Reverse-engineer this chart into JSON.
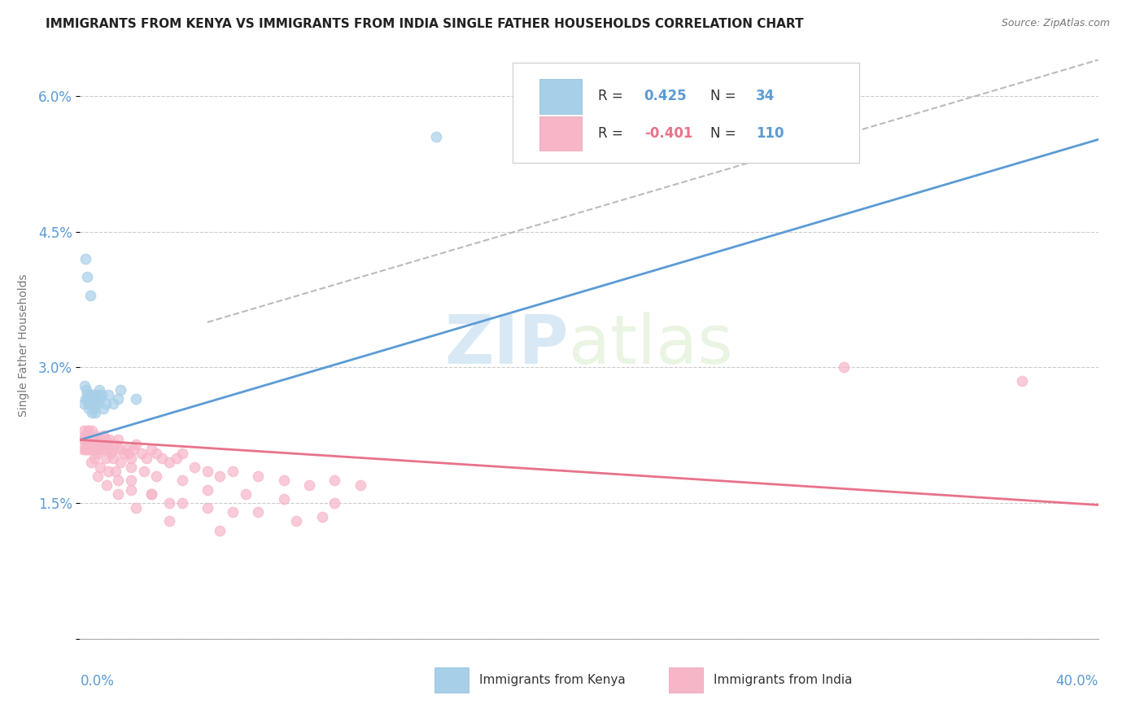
{
  "title": "IMMIGRANTS FROM KENYA VS IMMIGRANTS FROM INDIA SINGLE FATHER HOUSEHOLDS CORRELATION CHART",
  "source": "Source: ZipAtlas.com",
  "ylabel": "Single Father Households",
  "xlim": [
    0.0,
    40.0
  ],
  "ylim": [
    0.0,
    6.5
  ],
  "yticks": [
    0.0,
    1.5,
    3.0,
    4.5,
    6.0
  ],
  "ytick_labels": [
    "",
    "1.5%",
    "3.0%",
    "4.5%",
    "6.0%"
  ],
  "legend_r_kenya": "R =  0.425",
  "legend_n_kenya": "N =  34",
  "legend_r_india": "R = -0.401",
  "legend_n_india": "N = 110",
  "watermark_zip": "ZIP",
  "watermark_atlas": "atlas",
  "kenya_color": "#a8cfe8",
  "india_color": "#f7b6c8",
  "kenya_line_color": "#5b9bd5",
  "india_line_color": "#e8728a",
  "kenya_scatter_x": [
    0.15,
    0.18,
    0.22,
    0.25,
    0.28,
    0.3,
    0.32,
    0.35,
    0.38,
    0.4,
    0.42,
    0.45,
    0.48,
    0.5,
    0.52,
    0.55,
    0.58,
    0.6,
    0.65,
    0.7,
    0.75,
    0.8,
    0.85,
    0.9,
    1.0,
    1.1,
    1.3,
    1.5,
    1.6,
    2.2,
    0.22,
    0.28,
    0.4,
    14.0
  ],
  "kenya_scatter_y": [
    2.6,
    2.8,
    2.65,
    2.75,
    2.7,
    2.6,
    2.65,
    2.55,
    2.6,
    2.7,
    2.6,
    2.65,
    2.5,
    2.6,
    2.7,
    2.55,
    2.5,
    2.65,
    2.6,
    2.7,
    2.75,
    2.65,
    2.7,
    2.55,
    2.6,
    2.7,
    2.6,
    2.65,
    2.75,
    2.65,
    4.2,
    4.0,
    3.8,
    5.55
  ],
  "india_scatter_x": [
    0.1,
    0.12,
    0.15,
    0.18,
    0.2,
    0.22,
    0.25,
    0.28,
    0.3,
    0.32,
    0.35,
    0.38,
    0.4,
    0.42,
    0.45,
    0.48,
    0.5,
    0.52,
    0.55,
    0.58,
    0.6,
    0.65,
    0.7,
    0.75,
    0.8,
    0.85,
    0.9,
    0.95,
    1.0,
    1.05,
    1.1,
    1.15,
    1.2,
    1.3,
    1.4,
    1.5,
    1.6,
    1.7,
    1.8,
    1.9,
    2.0,
    2.1,
    2.2,
    2.4,
    2.6,
    2.8,
    3.0,
    3.2,
    3.5,
    3.8,
    4.0,
    4.5,
    5.0,
    5.5,
    6.0,
    7.0,
    8.0,
    9.0,
    10.0,
    11.0,
    0.3,
    0.5,
    0.7,
    1.0,
    1.3,
    1.6,
    2.0,
    2.5,
    3.0,
    4.0,
    5.0,
    6.5,
    8.0,
    10.0,
    0.2,
    0.35,
    0.55,
    0.8,
    1.1,
    1.5,
    2.0,
    2.8,
    3.5,
    5.0,
    7.0,
    9.5,
    0.4,
    0.65,
    1.0,
    1.4,
    2.0,
    2.8,
    4.0,
    6.0,
    8.5,
    0.25,
    0.45,
    0.7,
    1.05,
    1.5,
    2.2,
    3.5,
    5.5,
    30.0,
    37.0
  ],
  "india_scatter_y": [
    2.2,
    2.1,
    2.3,
    2.2,
    2.1,
    2.25,
    2.2,
    2.1,
    2.3,
    2.15,
    2.2,
    2.25,
    2.1,
    2.2,
    2.15,
    2.3,
    2.2,
    2.1,
    2.2,
    2.15,
    2.25,
    2.2,
    2.15,
    2.1,
    2.2,
    2.15,
    2.25,
    2.1,
    2.2,
    2.15,
    2.1,
    2.2,
    2.05,
    2.1,
    2.15,
    2.2,
    2.1,
    2.05,
    2.1,
    2.05,
    2.0,
    2.1,
    2.15,
    2.05,
    2.0,
    2.1,
    2.05,
    2.0,
    1.95,
    2.0,
    2.05,
    1.9,
    1.85,
    1.8,
    1.85,
    1.8,
    1.75,
    1.7,
    1.75,
    1.7,
    2.3,
    2.2,
    2.1,
    2.15,
    2.0,
    1.95,
    1.9,
    1.85,
    1.8,
    1.75,
    1.65,
    1.6,
    1.55,
    1.5,
    2.25,
    2.1,
    2.0,
    1.9,
    1.85,
    1.75,
    1.65,
    1.6,
    1.5,
    1.45,
    1.4,
    1.35,
    2.15,
    2.05,
    2.0,
    1.85,
    1.75,
    1.6,
    1.5,
    1.4,
    1.3,
    2.1,
    1.95,
    1.8,
    1.7,
    1.6,
    1.45,
    1.3,
    1.2,
    3.0,
    2.85
  ],
  "dashed_line_x": [
    5.0,
    40.0
  ],
  "dashed_line_y": [
    3.5,
    6.4
  ],
  "kenya_line_x": [
    0.0,
    40.0
  ],
  "kenya_line_y_intercept": 2.2,
  "kenya_line_slope": 0.083,
  "india_line_x": [
    0.0,
    40.0
  ],
  "india_line_y_intercept": 2.2,
  "india_line_slope": -0.018
}
